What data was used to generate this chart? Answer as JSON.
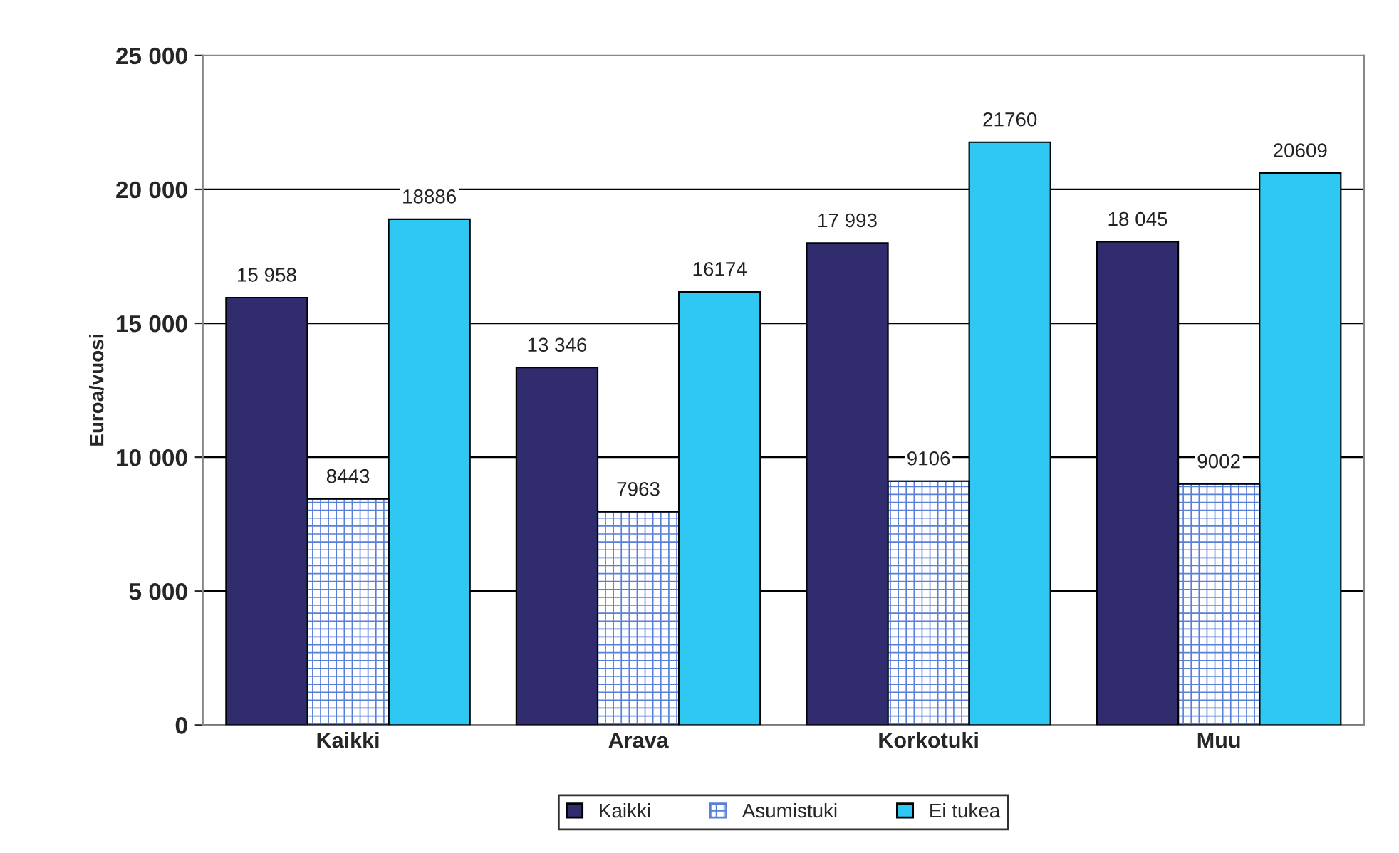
{
  "chart_data": {
    "type": "bar",
    "ylabel": "Euroa/vuosi",
    "categories": [
      "Kaikki",
      "Arava",
      "Korkotuki",
      "Muu"
    ],
    "series": [
      {
        "name": "Kaikki",
        "color": "#312c6e",
        "values": [
          15958,
          13346,
          17993,
          18045
        ],
        "value_labels": [
          "15 958",
          "13 346",
          "17 993",
          "18 045"
        ]
      },
      {
        "name": "Asumistuki",
        "color": "#5a7fd8",
        "values": [
          8443,
          7963,
          9106,
          9002
        ],
        "value_labels": [
          "8443",
          "7963",
          "9106",
          "9002"
        ]
      },
      {
        "name": "Ei tukea",
        "color": "#2ec8f2",
        "values": [
          18886,
          16174,
          21760,
          20609
        ],
        "value_labels": [
          "18886",
          "16174",
          "21760",
          "20609"
        ]
      }
    ],
    "ylim": [
      0,
      25000
    ],
    "yticks": [
      0,
      {
        "value": 5000,
        "label": "5 000"
      },
      {
        "value": 10000,
        "label": "10 000"
      },
      {
        "value": 15000,
        "label": "15 000"
      },
      {
        "value": 20000,
        "label": "20 000"
      },
      {
        "value": 25000,
        "label": "25 000"
      }
    ],
    "grid": "y",
    "legend": "bottom"
  }
}
